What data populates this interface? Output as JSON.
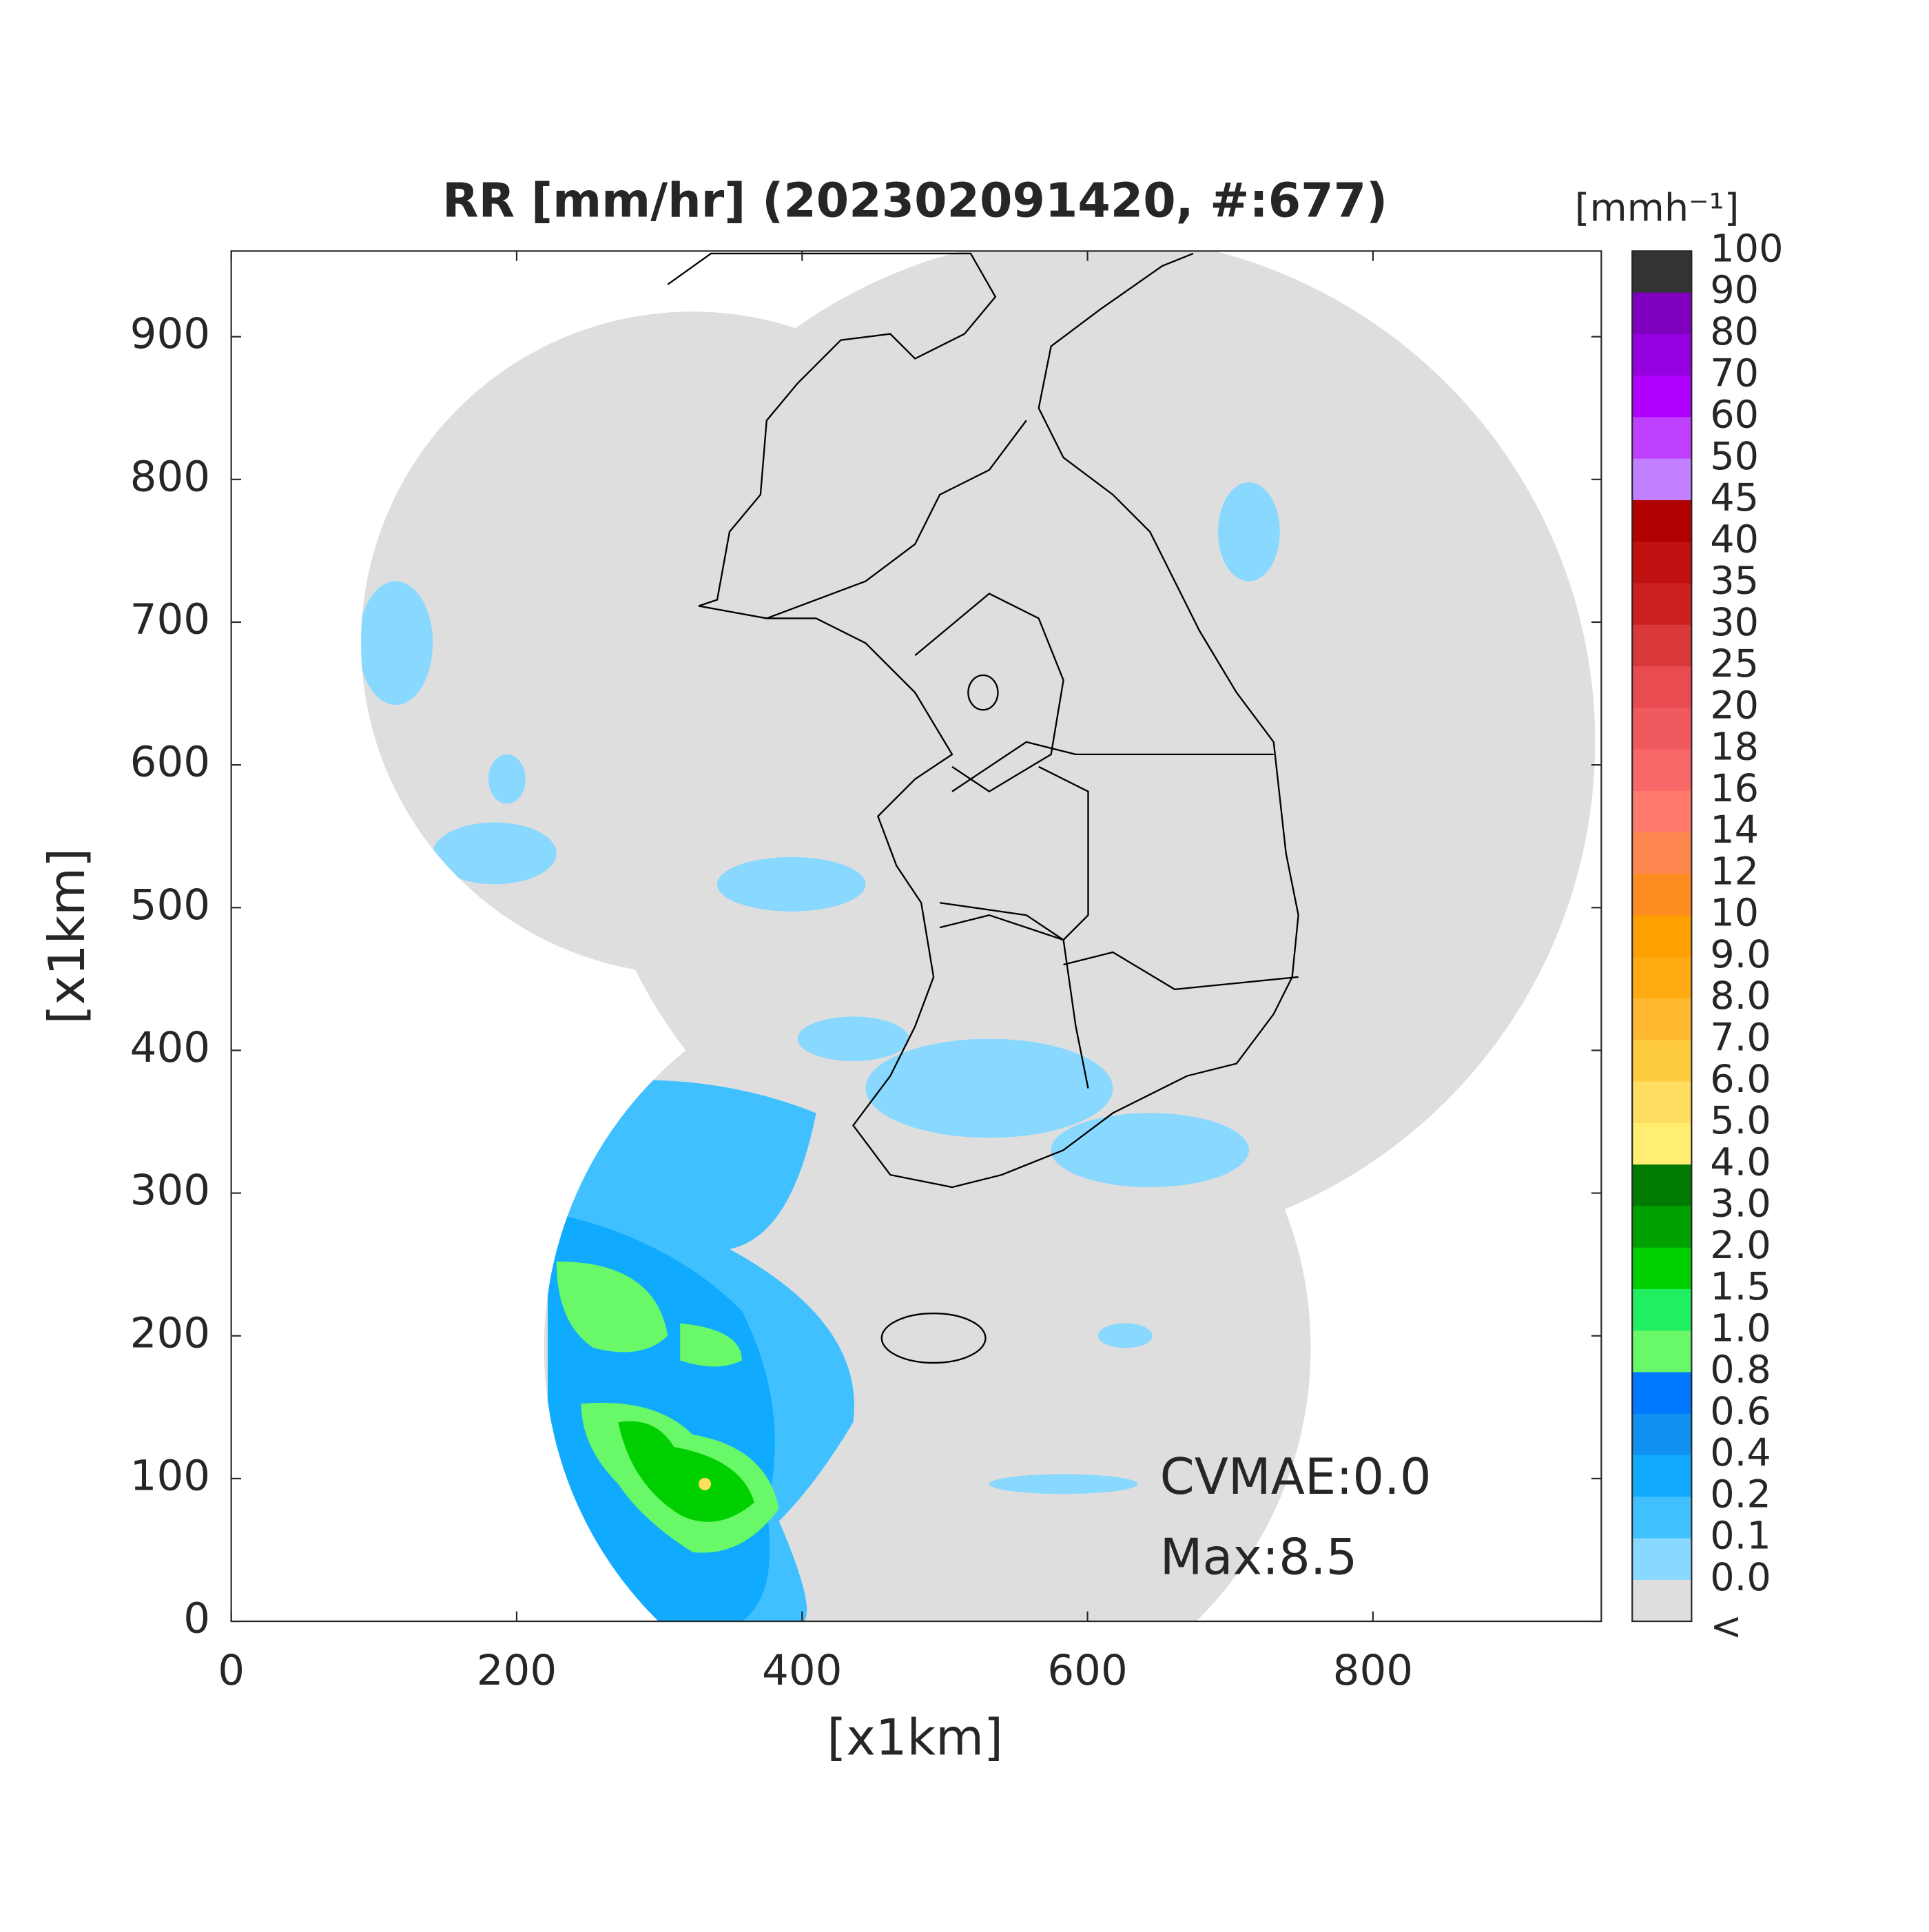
{
  "chart_data": {
    "type": "map",
    "title": "RR [mm/hr] (202302091420, #:677)",
    "x_label": "[x1km]",
    "y_label": "[x1km]",
    "xlim": [
      0,
      960
    ],
    "ylim": [
      0,
      960
    ],
    "xticks": [
      0,
      200,
      400,
      600,
      800
    ],
    "yticks": [
      0,
      100,
      200,
      300,
      400,
      500,
      600,
      700,
      800,
      900
    ],
    "colorbar": {
      "label": "[mmh⁻¹]",
      "ticks": [
        "100",
        "90",
        "80",
        "70",
        "60",
        "50",
        "45",
        "40",
        "35",
        "30",
        "25",
        "20",
        "18",
        "16",
        "14",
        "12",
        "10",
        "9.0",
        "8.0",
        "7.0",
        "6.0",
        "5.0",
        "4.0",
        "3.0",
        "2.0",
        "1.5",
        "1.0",
        "0.8",
        "0.6",
        "0.4",
        "0.2",
        "0.1",
        "0.0",
        "<"
      ],
      "colors": [
        "#333333",
        "#8000c0",
        "#9400e0",
        "#b000ff",
        "#c040ff",
        "#c080ff",
        "#b00000",
        "#c01010",
        "#cc2020",
        "#d83838",
        "#e84c50",
        "#f05a5e",
        "#f86868",
        "#ff7a6a",
        "#ff8850",
        "#ff8c20",
        "#ffa000",
        "#ffaa10",
        "#ffb830",
        "#ffcc40",
        "#ffdd60",
        "#ffee70",
        "#007a00",
        "#00a000",
        "#00d000",
        "#20f060",
        "#68f868",
        "#0078ff",
        "#1090f0",
        "#10aaff",
        "#40c0ff",
        "#88d8ff",
        "#dedede",
        "#ffffff"
      ]
    },
    "annotations": [
      "CVMAE:0.0",
      "Max:8.5"
    ]
  }
}
